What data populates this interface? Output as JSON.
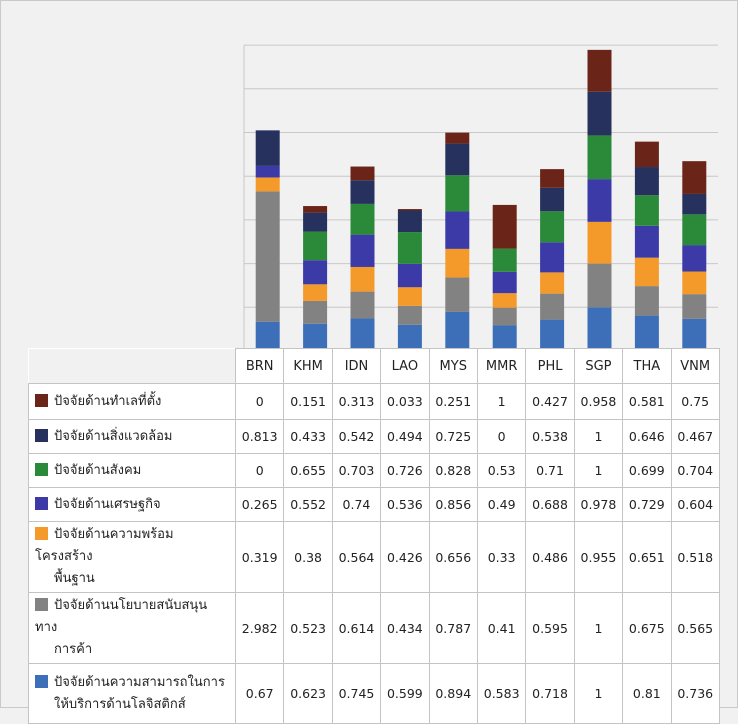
{
  "chart_data": {
    "type": "bar",
    "stacked": true,
    "categories": [
      "BRN",
      "KHM",
      "IDN",
      "LAO",
      "MYS",
      "MMR",
      "PHL",
      "SGP",
      "THA",
      "VNM"
    ],
    "ylim": [
      0,
      7
    ],
    "grid": true,
    "legend_placement": "table-left",
    "series": [
      {
        "name": "ปัจจัยด้านความสามารถในการให้บริการด้านโลจิสติกส์",
        "color": "#3d6fb8",
        "values": [
          0.67,
          0.623,
          0.745,
          0.599,
          0.894,
          0.583,
          0.718,
          1,
          0.81,
          0.736
        ]
      },
      {
        "name": "ปัจจัยด้านนโยบายสนับสนุนทางการค้า",
        "color": "#828282",
        "values": [
          2.982,
          0.523,
          0.614,
          0.434,
          0.787,
          0.41,
          0.595,
          1,
          0.675,
          0.565
        ]
      },
      {
        "name": "ปัจจัยด้านความพร้อมโครงสร้างพื้นฐาน",
        "color": "#f39a2a",
        "values": [
          0.319,
          0.38,
          0.564,
          0.426,
          0.656,
          0.33,
          0.486,
          0.955,
          0.651,
          0.518
        ]
      },
      {
        "name": "ปัจจัยด้านเศรษฐกิจ",
        "color": "#3b3aa6",
        "values": [
          0.265,
          0.552,
          0.74,
          0.536,
          0.856,
          0.49,
          0.688,
          0.978,
          0.729,
          0.604
        ]
      },
      {
        "name": "ปัจจัยด้านสังคม",
        "color": "#2b8a3a",
        "values": [
          0,
          0.655,
          0.703,
          0.726,
          0.828,
          0.53,
          0.71,
          1,
          0.699,
          0.704
        ]
      },
      {
        "name": "ปัจจัยด้านสิ่งแวดล้อม",
        "color": "#27315e",
        "values": [
          0.813,
          0.433,
          0.542,
          0.494,
          0.725,
          0,
          0.538,
          1,
          0.646,
          0.467
        ]
      },
      {
        "name": "ปัจจัยด้านทำเลที่ตั้ง",
        "color": "#6b2518",
        "values": [
          0,
          0.151,
          0.313,
          0.033,
          0.251,
          1,
          0.427,
          0.958,
          0.581,
          0.75
        ]
      }
    ],
    "table_rows": [
      {
        "label_lines": [
          "ปัจจัยด้านทำเลที่ตั้ง"
        ],
        "display": [
          "0",
          "0.151",
          "0.313",
          "0.033",
          "0.251",
          "1",
          "0.427",
          "0.958",
          "0.581",
          "0.75"
        ],
        "series_index": 6
      },
      {
        "label_lines": [
          "ปัจจัยด้านสิ่งแวดล้อม"
        ],
        "display": [
          "0.813",
          "0.433",
          "0.542",
          "0.494",
          "0.725",
          "0",
          "0.538",
          "1",
          "0.646",
          "0.467"
        ],
        "series_index": 5
      },
      {
        "label_lines": [
          "ปัจจัยด้านสังคม"
        ],
        "display": [
          "0",
          "0.655",
          "0.703",
          "0.726",
          "0.828",
          "0.53",
          "0.71",
          "1",
          "0.699",
          "0.704"
        ],
        "series_index": 4
      },
      {
        "label_lines": [
          "ปัจจัยด้านเศรษฐกิจ"
        ],
        "display": [
          "0.265",
          "0.552",
          "0.74",
          "0.536",
          "0.856",
          "0.49",
          "0.688",
          "0.978",
          "0.729",
          "0.604"
        ],
        "series_index": 3
      },
      {
        "label_lines": [
          "ปัจจัยด้านความพร้อมโครงสร้าง",
          "พื้นฐาน"
        ],
        "display": [
          "0.319",
          "0.38",
          "0.564",
          "0.426",
          "0.656",
          "0.33",
          "0.486",
          "0.955",
          "0.651",
          "0.518"
        ],
        "series_index": 2
      },
      {
        "label_lines": [
          "ปัจจัยด้านนโยบายสนับสนุนทาง",
          "การค้า"
        ],
        "display": [
          "2.982",
          "0.523",
          "0.614",
          "0.434",
          "0.787",
          "0.41",
          "0.595",
          "1",
          "0.675",
          "0.565"
        ],
        "series_index": 1
      },
      {
        "label_lines": [
          "ปัจจัยด้านความสามารถในการ",
          "ให้บริการด้านโลจิสติกส์"
        ],
        "display": [
          "0.67",
          "0.623",
          "0.745",
          "0.599",
          "0.894",
          "0.583",
          "0.718",
          "1",
          "0.81",
          "0.736"
        ],
        "series_index": 0
      }
    ]
  }
}
